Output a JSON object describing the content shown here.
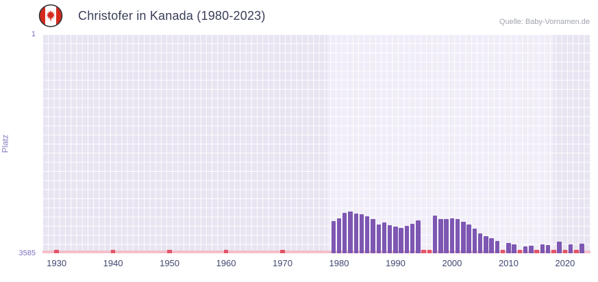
{
  "header": {
    "title": "Christofer in Kanada (1980-2023)",
    "source": "Quelle: Baby-Vornamen.de",
    "flag": "canada-flag"
  },
  "chart_data": {
    "type": "bar",
    "title": "Christofer in Kanada (1980-2023)",
    "xlabel": "",
    "ylabel": "Platz",
    "source": "Quelle: Baby-Vornamen.de",
    "yaxis": {
      "inverted": true,
      "min": 1,
      "max": 3585,
      "top_tick_label": "1",
      "bottom_tick_label": "3585"
    },
    "xaxis": {
      "range": [
        1927.5,
        2024.5
      ],
      "ticks": [
        1930,
        1940,
        1950,
        1960,
        1970,
        1980,
        1990,
        2000,
        2010,
        2020
      ],
      "tick_labels": [
        "1930",
        "1940",
        "1950",
        "1960",
        "1970",
        "1980",
        "1990",
        "2000",
        "2010",
        "2020"
      ]
    },
    "highlight_band": {
      "from": 1978,
      "to": 2018
    },
    "no_data_years_range": {
      "from": 1928,
      "to": 1978
    },
    "strong_marker_years": [
      1930,
      1940,
      1950,
      1960,
      1970,
      1995,
      1996,
      2009,
      2012,
      2015,
      2018,
      2020,
      2022
    ],
    "series": [
      {
        "year": 1979,
        "rank": 3060
      },
      {
        "year": 1980,
        "rank": 3010
      },
      {
        "year": 1981,
        "rank": 2920
      },
      {
        "year": 1982,
        "rank": 2900
      },
      {
        "year": 1983,
        "rank": 2930
      },
      {
        "year": 1984,
        "rank": 2950
      },
      {
        "year": 1985,
        "rank": 2980
      },
      {
        "year": 1986,
        "rank": 3020
      },
      {
        "year": 1987,
        "rank": 3110
      },
      {
        "year": 1988,
        "rank": 3080
      },
      {
        "year": 1989,
        "rank": 3130
      },
      {
        "year": 1990,
        "rank": 3150
      },
      {
        "year": 1991,
        "rank": 3170
      },
      {
        "year": 1992,
        "rank": 3140
      },
      {
        "year": 1993,
        "rank": 3100
      },
      {
        "year": 1994,
        "rank": 3050
      },
      {
        "year": 1995,
        "rank": null
      },
      {
        "year": 1996,
        "rank": null
      },
      {
        "year": 1997,
        "rank": 2970
      },
      {
        "year": 1998,
        "rank": 3020
      },
      {
        "year": 1999,
        "rank": 3030
      },
      {
        "year": 2000,
        "rank": 3010
      },
      {
        "year": 2001,
        "rank": 3030
      },
      {
        "year": 2002,
        "rank": 3070
      },
      {
        "year": 2003,
        "rank": 3110
      },
      {
        "year": 2004,
        "rank": 3180
      },
      {
        "year": 2005,
        "rank": 3260
      },
      {
        "year": 2006,
        "rank": 3300
      },
      {
        "year": 2007,
        "rank": 3340
      },
      {
        "year": 2008,
        "rank": 3380
      },
      {
        "year": 2009,
        "rank": null
      },
      {
        "year": 2010,
        "rank": 3420
      },
      {
        "year": 2011,
        "rank": 3440
      },
      {
        "year": 2012,
        "rank": null
      },
      {
        "year": 2013,
        "rank": 3470
      },
      {
        "year": 2014,
        "rank": 3460
      },
      {
        "year": 2015,
        "rank": null
      },
      {
        "year": 2016,
        "rank": 3440
      },
      {
        "year": 2017,
        "rank": 3450
      },
      {
        "year": 2018,
        "rank": null
      },
      {
        "year": 2019,
        "rank": 3400
      },
      {
        "year": 2020,
        "rank": null
      },
      {
        "year": 2021,
        "rank": 3440
      },
      {
        "year": 2022,
        "rank": null
      },
      {
        "year": 2023,
        "rank": 3430
      }
    ]
  },
  "colors": {
    "title": "#3a3d58",
    "source": "#9fa3ad",
    "plot_bg": "#e8e4f1",
    "band_bg": "#f0edf8",
    "grid": "#ffffff",
    "bar": "#7d57b2",
    "marker_strong": "#e25568",
    "baseline_strip": "#f3bfc9",
    "ytick": "#7b6fc0",
    "xtick": "#3f466f",
    "ylabel": "#8a7cc2",
    "flag_red": "#d52b1e"
  }
}
